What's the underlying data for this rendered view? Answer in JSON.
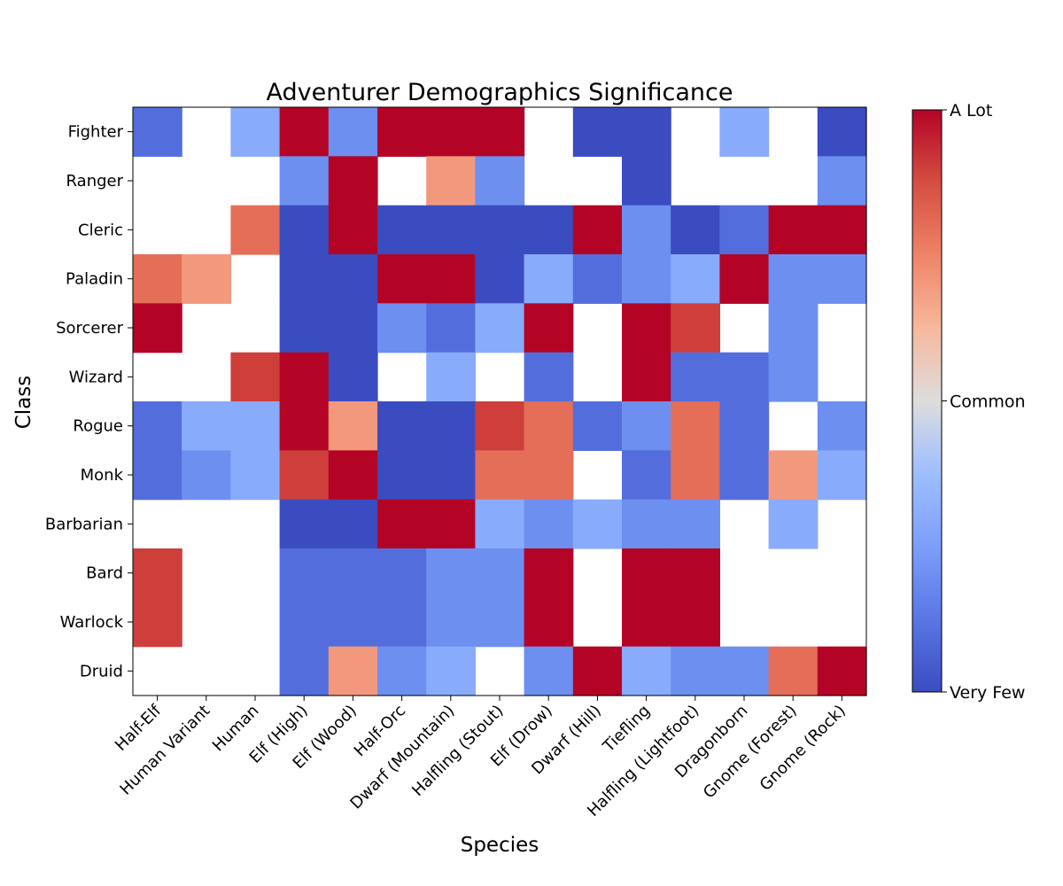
{
  "chart_data": {
    "type": "heatmap",
    "title": "Adventurer Demographics Significance",
    "xlabel": "Species",
    "ylabel": "Class",
    "x_categories": [
      "Half-Elf",
      "Human Variant",
      "Human",
      "Elf (High)",
      "Elf (Wood)",
      "Half-Orc",
      "Dwarf (Mountain)",
      "Halfling (Stout)",
      "Elf (Drow)",
      "Dwarf (Hill)",
      "Tiefling",
      "Halfling (Lightfoot)",
      "Dragonborn",
      "Gnome (Forest)",
      "Gnome (Rock)"
    ],
    "y_categories": [
      "Fighter",
      "Ranger",
      "Cleric",
      "Paladin",
      "Sorcerer",
      "Wizard",
      "Rogue",
      "Monk",
      "Barbarian",
      "Bard",
      "Warlock",
      "Druid"
    ],
    "colormap": "coolwarm",
    "vmin": 0,
    "vmax": 1,
    "values": [
      [
        0.1,
        null,
        0.3,
        1.0,
        0.2,
        1.0,
        1.0,
        1.0,
        null,
        0.0,
        0.0,
        null,
        0.3,
        null,
        0.0
      ],
      [
        null,
        null,
        null,
        0.2,
        1.0,
        null,
        0.7,
        0.2,
        null,
        null,
        0.0,
        null,
        null,
        null,
        0.2
      ],
      [
        null,
        null,
        0.8,
        0.0,
        1.0,
        0.0,
        0.0,
        0.0,
        0.0,
        1.0,
        0.2,
        0.0,
        0.1,
        1.0,
        1.0
      ],
      [
        0.8,
        0.7,
        null,
        0.0,
        0.0,
        1.0,
        1.0,
        0.0,
        0.3,
        0.1,
        0.2,
        0.3,
        1.0,
        0.2,
        0.2
      ],
      [
        1.0,
        null,
        null,
        0.0,
        0.0,
        0.2,
        0.1,
        0.3,
        1.0,
        null,
        1.0,
        0.9,
        null,
        0.2,
        null
      ],
      [
        null,
        null,
        0.9,
        1.0,
        0.0,
        null,
        0.3,
        null,
        0.1,
        null,
        1.0,
        0.1,
        0.1,
        0.2,
        null
      ],
      [
        0.1,
        0.3,
        0.3,
        1.0,
        0.7,
        0.0,
        0.0,
        0.9,
        0.8,
        0.1,
        0.2,
        0.8,
        0.1,
        null,
        0.2
      ],
      [
        0.1,
        0.2,
        0.3,
        0.9,
        1.0,
        0.0,
        0.0,
        0.8,
        0.8,
        null,
        0.1,
        0.8,
        0.1,
        0.7,
        0.3
      ],
      [
        null,
        null,
        null,
        0.0,
        0.0,
        1.0,
        1.0,
        0.3,
        0.2,
        0.3,
        0.2,
        0.2,
        null,
        0.3,
        null
      ],
      [
        0.9,
        null,
        null,
        0.1,
        0.1,
        0.1,
        0.2,
        0.2,
        1.0,
        null,
        1.0,
        1.0,
        null,
        null,
        null
      ],
      [
        0.9,
        null,
        null,
        0.1,
        0.1,
        0.1,
        0.2,
        0.2,
        1.0,
        null,
        1.0,
        1.0,
        null,
        null,
        null
      ],
      [
        null,
        null,
        null,
        0.1,
        0.7,
        0.2,
        0.3,
        null,
        0.2,
        1.0,
        0.3,
        0.2,
        0.2,
        0.8,
        1.0
      ]
    ],
    "colorbar": {
      "ticks": [
        {
          "value": 1.0,
          "label": "A Lot"
        },
        {
          "value": 0.5,
          "label": "Common"
        },
        {
          "value": 0.0,
          "label": "Very Few"
        }
      ]
    },
    "grid": false,
    "legend": "colorbar right"
  }
}
